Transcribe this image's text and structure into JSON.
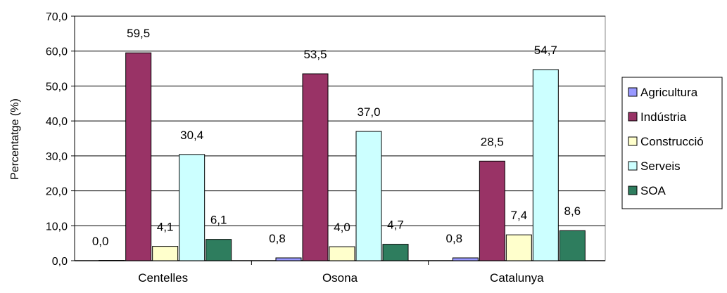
{
  "chart_data": {
    "type": "bar",
    "categories": [
      "Centelles",
      "Osona",
      "Catalunya"
    ],
    "series": [
      {
        "name": "Agricultura",
        "values": [
          0.0,
          0.8,
          0.8
        ],
        "labels": [
          "0,0",
          "0,8",
          "0,8"
        ],
        "color": "#9999ff"
      },
      {
        "name": "Indústria",
        "values": [
          59.5,
          53.5,
          28.5
        ],
        "labels": [
          "59,5",
          "53,5",
          "28,5"
        ],
        "color": "#993366"
      },
      {
        "name": "Construcció",
        "values": [
          4.1,
          4.0,
          7.4
        ],
        "labels": [
          "4,1",
          "4,0",
          "7,4"
        ],
        "color": "#ffffcc"
      },
      {
        "name": "Serveis",
        "values": [
          30.4,
          37.0,
          54.7
        ],
        "labels": [
          "30,4",
          "37,0",
          "54,7"
        ],
        "color": "#ccffff"
      },
      {
        "name": "SOA",
        "values": [
          6.1,
          4.7,
          8.6
        ],
        "labels": [
          "6,1",
          "4,7",
          "8,6"
        ],
        "color": "#2e7d5e"
      }
    ],
    "ylabel": "Percentatge (%)",
    "xlabel": "",
    "ylim": [
      0,
      70
    ],
    "yticks": [
      "0,0",
      "10,0",
      "20,0",
      "30,0",
      "40,0",
      "50,0",
      "60,0",
      "70,0"
    ],
    "grid": true,
    "legend_position": "right"
  }
}
